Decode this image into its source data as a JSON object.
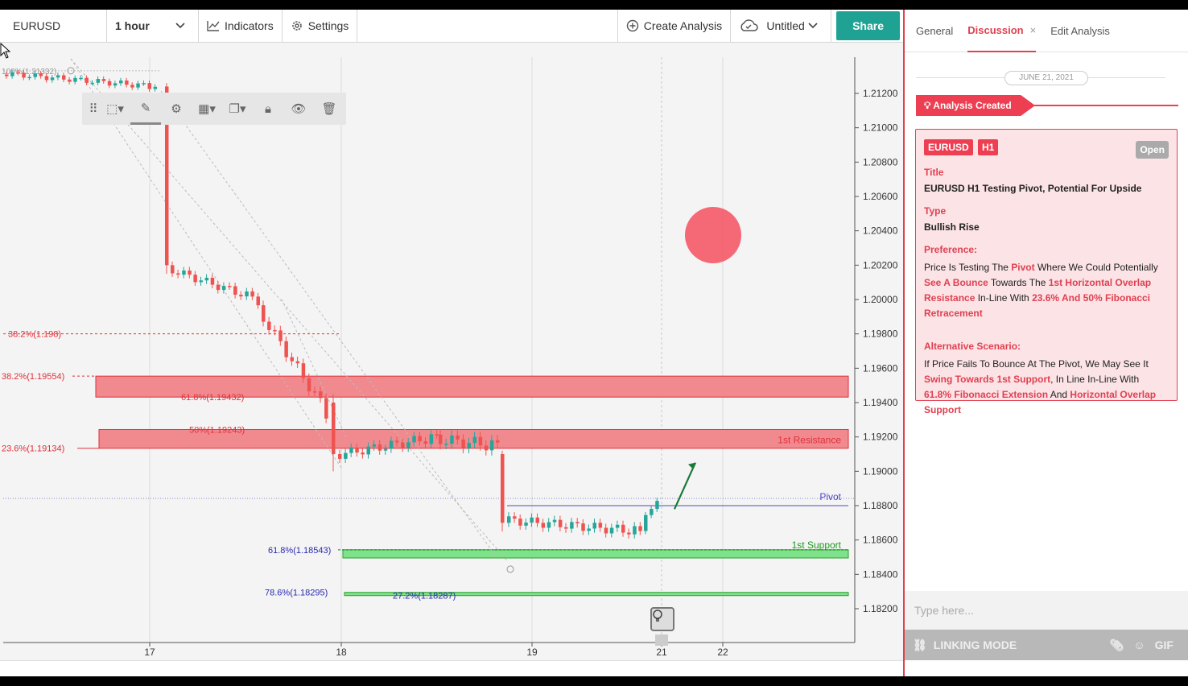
{
  "toolbar": {
    "symbol": "EURUSD",
    "timeframe": "1 hour",
    "indicators": "Indicators",
    "settings": "Settings",
    "create_analysis": "Create Analysis",
    "workspace": "Untitled",
    "share": "Share"
  },
  "chart": {
    "price_ticks": [
      "1.21200",
      "1.21000",
      "1.20800",
      "1.20600",
      "1.20400",
      "1.20200",
      "1.20000",
      "1.19800",
      "1.19600",
      "1.19400",
      "1.19200",
      "1.19000",
      "1.18800",
      "1.18600",
      "1.18400",
      "1.18200"
    ],
    "date_ticks": [
      "17",
      "18",
      "19",
      "21",
      "22"
    ],
    "fib_labels": {
      "f100": "100%(1.21332)",
      "f382": "38.2%(1.198)",
      "f382b": "38.2%(1.19554)",
      "f618a": "61.8%(1.19432)",
      "f50": "50%(1.19243)",
      "f236": "23.6%(1.19134)",
      "f618b": "61.8%(1.18543)",
      "f786": "78.6%(1.18295)",
      "f272": "27.2%(1.18287)"
    },
    "zone_labels": {
      "resistance": "1st Resistance",
      "pivot": "Pivot",
      "support": "1st Support"
    },
    "colors": {
      "up": "#26a69a",
      "down": "#ef5350",
      "resistance_zone": "#f08a8f",
      "support_zone": "#7ee28a",
      "pivot": "#4a4ac8"
    }
  },
  "panel": {
    "tabs": [
      "General",
      "Discussion",
      "Edit Analysis"
    ],
    "date": "JUNE 21, 2021",
    "created": "Analysis Created",
    "badges": [
      "EURUSD",
      "H1"
    ],
    "status": "Open",
    "title_label": "Title",
    "title": "EURUSD H1 Testing Pivot, Potential For Upside",
    "type_label": "Type",
    "type": "Bullish Rise",
    "preference_label": "Preference:",
    "preference": {
      "p1": "Price Is Testing The ",
      "h1": "Pivot",
      "p2": " Where We Could Potentially ",
      "h2": "See A Bounce",
      "p3": " Towards The ",
      "h3": "1st Horizontal Overlap Resistance",
      "p4": " In-Line With ",
      "h4": "23.6% And 50% Fibonacci Retracement"
    },
    "alt_label": "Alternative Scenario:",
    "alternative": {
      "p1": "If Price Fails To Bounce At The Pivot, We May See It ",
      "h1": "Swing Towards 1st Support",
      "p2": ", In Line In-Line With ",
      "h2": "61.8% Fibonacci Extension",
      "p3": " And ",
      "h3": "Horizontal Overlap Support"
    },
    "input_placeholder": "Type here...",
    "linking_mode": "LINKING MODE",
    "gif": "GIF"
  }
}
